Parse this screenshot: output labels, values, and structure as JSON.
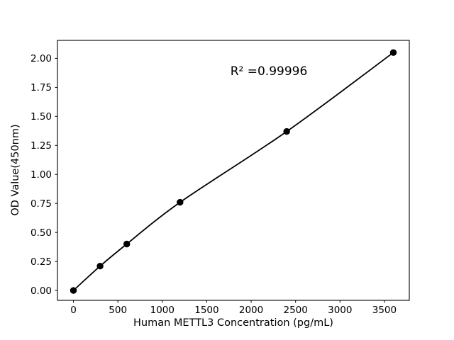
{
  "figure": {
    "background": "#ffffff",
    "ink_color": "#000000"
  },
  "chart_data": {
    "type": "scatter",
    "title": "",
    "xlabel": "Human METTL3 Concentration (pg/mL)",
    "ylabel": "OD Value(450nm)",
    "annotation": "R² =0.99996",
    "r_squared": 0.99996,
    "x": [
      0,
      300,
      600,
      1200,
      2400,
      3600
    ],
    "y": [
      0.0,
      0.21,
      0.4,
      0.76,
      1.37,
      2.05
    ],
    "fit_line": "smooth curve through all points, from first point to last point",
    "xticks": [
      0,
      500,
      1000,
      1500,
      2000,
      2500,
      3000,
      3500
    ],
    "xtick_labels": [
      "0",
      "500",
      "1000",
      "1500",
      "2000",
      "2500",
      "3000",
      "3500"
    ],
    "yticks": [
      0.0,
      0.25,
      0.5,
      0.75,
      1.0,
      1.25,
      1.5,
      1.75,
      2.0
    ],
    "ytick_labels": [
      "0.00",
      "0.25",
      "0.50",
      "0.75",
      "1.00",
      "1.25",
      "1.50",
      "1.75",
      "2.00"
    ],
    "xlim": [
      -180,
      3780
    ],
    "ylim": [
      -0.085,
      2.155
    ],
    "grid": false,
    "legend": null,
    "marker_color": "#000000",
    "line_color": "#000000"
  }
}
